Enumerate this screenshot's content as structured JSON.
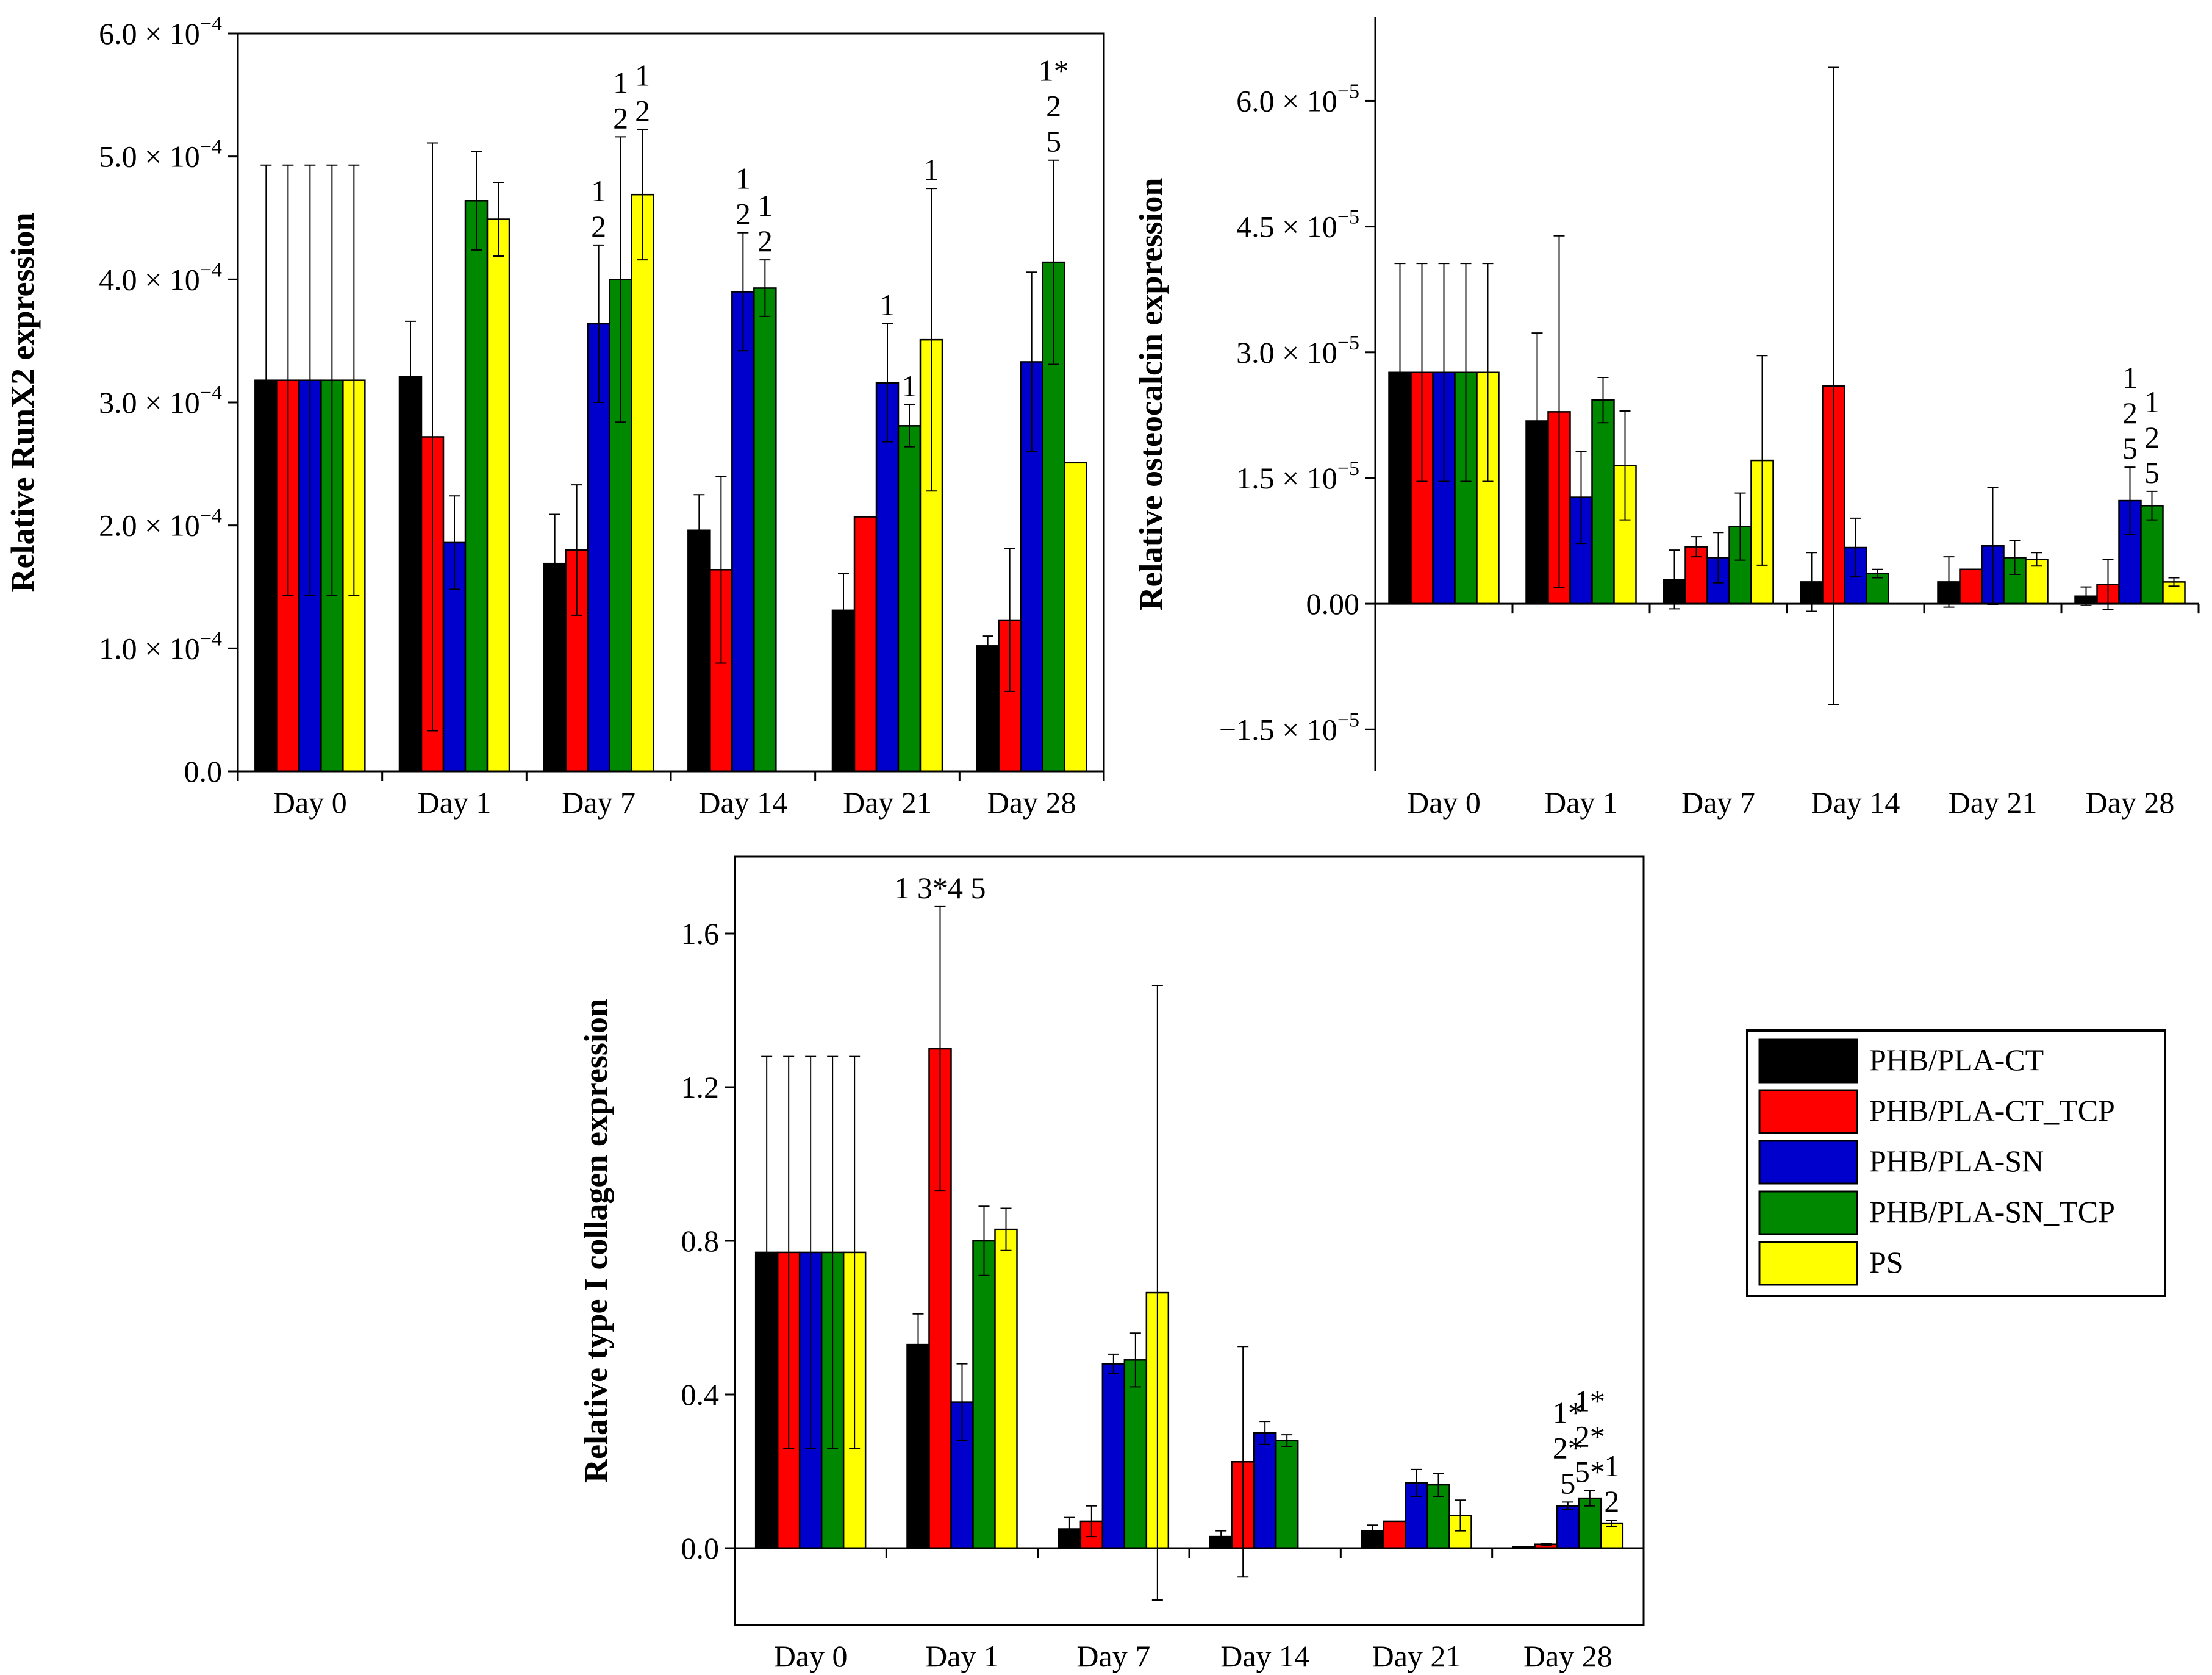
{
  "legend": [
    {
      "name": "PHB/PLA-CT",
      "color": "#000000"
    },
    {
      "name": "PHB/PLA-CT_TCP",
      "color": "#ff0000"
    },
    {
      "name": "PHB/PLA-SN",
      "color": "#0000cc"
    },
    {
      "name": "PHB/PLA-SN_TCP",
      "color": "#008800"
    },
    {
      "name": "PS",
      "color": "#ffff00"
    }
  ],
  "chart_data": [
    {
      "id": "runx2",
      "type": "bar",
      "title": "",
      "ylabel": "Relative RunX2 expression",
      "xlabel": "",
      "categories": [
        "Day 0",
        "Day 1",
        "Day 7",
        "Day 14",
        "Day 21",
        "Day 28"
      ],
      "ylim": [
        0,
        0.0006
      ],
      "yticks": [
        0,
        0.0001,
        0.0002,
        0.0003,
        0.0004,
        0.0005,
        0.0006
      ],
      "ytick_labels": [
        {
          "mantissa": "0.0",
          "exp": ""
        },
        {
          "mantissa": "1.0 × 10",
          "exp": "−4"
        },
        {
          "mantissa": "2.0 × 10",
          "exp": "−4"
        },
        {
          "mantissa": "3.0 × 10",
          "exp": "−4"
        },
        {
          "mantissa": "4.0 × 10",
          "exp": "−4"
        },
        {
          "mantissa": "5.0 × 10",
          "exp": "−4"
        },
        {
          "mantissa": "6.0 × 10",
          "exp": "−4"
        }
      ],
      "series": [
        {
          "name": "PHB/PLA-CT",
          "values": [
            0.000318,
            0.000321,
            0.000169,
            0.000196,
            0.000131,
            0.000102
          ],
          "errors": [
            0.000175,
            4.5e-05,
            4e-05,
            2.9e-05,
            3e-05,
            8e-06
          ]
        },
        {
          "name": "PHB/PLA-CT_TCP",
          "values": [
            0.000318,
            0.000272,
            0.00018,
            0.000164,
            0.000207,
            0.000123
          ],
          "errors": [
            0.000175,
            0.000239,
            5.3e-05,
            7.6e-05,
            0,
            5.8e-05
          ]
        },
        {
          "name": "PHB/PLA-SN",
          "values": [
            0.000318,
            0.000186,
            0.000364,
            0.00039,
            0.000316,
            0.000333
          ],
          "errors": [
            0.000175,
            3.8e-05,
            6.4e-05,
            4.8e-05,
            4.8e-05,
            7.3e-05
          ]
        },
        {
          "name": "PHB/PLA-SN_TCP",
          "values": [
            0.000318,
            0.000464,
            0.0004,
            0.000393,
            0.000281,
            0.000414
          ],
          "errors": [
            0.000175,
            4e-05,
            0.000116,
            2.3e-05,
            1.7e-05,
            8.3e-05
          ]
        },
        {
          "name": "PS",
          "values": [
            0.000318,
            0.000449,
            0.000469,
            null,
            0.000351,
            0.000251
          ],
          "errors": [
            0.000175,
            3e-05,
            5.3e-05,
            0,
            0.000123,
            0
          ]
        }
      ],
      "annotations": [
        {
          "cat": 2,
          "series": 2,
          "lines": [
            "1",
            "2"
          ]
        },
        {
          "cat": 2,
          "series": 3,
          "lines": [
            "1",
            "2"
          ]
        },
        {
          "cat": 2,
          "series": 4,
          "lines": [
            "1",
            "2"
          ]
        },
        {
          "cat": 3,
          "series": 2,
          "lines": [
            "1",
            "2"
          ]
        },
        {
          "cat": 3,
          "series": 3,
          "lines": [
            "1",
            "2"
          ]
        },
        {
          "cat": 4,
          "series": 2,
          "lines": [
            "1"
          ]
        },
        {
          "cat": 4,
          "series": 3,
          "lines": [
            "1"
          ]
        },
        {
          "cat": 4,
          "series": 4,
          "lines": [
            "1"
          ]
        },
        {
          "cat": 5,
          "series": 3,
          "lines": [
            "1*",
            "2",
            "5"
          ]
        }
      ]
    },
    {
      "id": "osteocalcin",
      "type": "bar",
      "title": "",
      "ylabel": "Relative osteocalcin expression",
      "xlabel": "",
      "categories": [
        "Day 0",
        "Day 1",
        "Day 7",
        "Day 14",
        "Day 21",
        "Day 28"
      ],
      "ylim": [
        -2e-05,
        7e-05
      ],
      "yticks": [
        -1.5e-05,
        0,
        1.5e-05,
        3e-05,
        4.5e-05,
        6e-05
      ],
      "ytick_labels": [
        {
          "mantissa": "−1.5 × 10",
          "exp": "−5"
        },
        {
          "mantissa": "0.00",
          "exp": ""
        },
        {
          "mantissa": "1.5 × 10",
          "exp": "−5"
        },
        {
          "mantissa": "3.0 × 10",
          "exp": "−5"
        },
        {
          "mantissa": "4.5 × 10",
          "exp": "−5"
        },
        {
          "mantissa": "6.0 × 10",
          "exp": "−5"
        }
      ],
      "series": [
        {
          "name": "PHB/PLA-CT",
          "values": [
            2.76e-05,
            2.18e-05,
            2.9e-06,
            2.6e-06,
            2.6e-06,
            9e-07
          ],
          "errors": [
            1.3e-05,
            1.05e-05,
            3.5e-06,
            3.5e-06,
            3e-06,
            1.1e-06
          ]
        },
        {
          "name": "PHB/PLA-CT_TCP",
          "values": [
            2.76e-05,
            2.29e-05,
            6.8e-06,
            2.6e-05,
            4.1e-06,
            2.3e-06
          ],
          "errors": [
            1.3e-05,
            2.1e-05,
            1.2e-06,
            3.8e-05,
            0,
            3e-06
          ]
        },
        {
          "name": "PHB/PLA-SN",
          "values": [
            2.76e-05,
            1.27e-05,
            5.5e-06,
            6.7e-06,
            6.9e-06,
            1.23e-05
          ],
          "errors": [
            1.3e-05,
            5.5e-06,
            3e-06,
            3.5e-06,
            7e-06,
            4e-06
          ]
        },
        {
          "name": "PHB/PLA-SN_TCP",
          "values": [
            2.76e-05,
            2.43e-05,
            9.2e-06,
            3.6e-06,
            5.5e-06,
            1.17e-05
          ],
          "errors": [
            1.3e-05,
            2.7e-06,
            4e-06,
            5e-07,
            2e-06,
            1.7e-06
          ]
        },
        {
          "name": "PS",
          "values": [
            2.76e-05,
            1.65e-05,
            1.71e-05,
            null,
            5.3e-06,
            2.6e-06
          ],
          "errors": [
            1.3e-05,
            6.5e-06,
            1.25e-05,
            0,
            8e-07,
            5e-07
          ]
        }
      ],
      "annotations": [
        {
          "cat": 5,
          "series": 2,
          "lines": [
            "1",
            "2",
            "5"
          ]
        },
        {
          "cat": 5,
          "series": 3,
          "lines": [
            "1",
            "2",
            "5"
          ]
        }
      ]
    },
    {
      "id": "collagen",
      "type": "bar",
      "title": "",
      "ylabel": "Relative type I collagen expression",
      "xlabel": "",
      "categories": [
        "Day 0",
        "Day 1",
        "Day 7",
        "Day 14",
        "Day 21",
        "Day 28"
      ],
      "ylim": [
        -0.2,
        1.8
      ],
      "yticks": [
        0,
        0.4,
        0.8,
        1.2,
        1.6
      ],
      "ytick_labels": [
        {
          "mantissa": "0.0",
          "exp": ""
        },
        {
          "mantissa": "0.4",
          "exp": ""
        },
        {
          "mantissa": "0.8",
          "exp": ""
        },
        {
          "mantissa": "1.2",
          "exp": ""
        },
        {
          "mantissa": "1.6",
          "exp": ""
        }
      ],
      "series": [
        {
          "name": "PHB/PLA-CT",
          "values": [
            0.77,
            0.53,
            0.05,
            0.03,
            0.045,
            0.003
          ],
          "errors": [
            0.51,
            0.08,
            0.03,
            0.015,
            0.015,
            0.001
          ]
        },
        {
          "name": "PHB/PLA-CT_TCP",
          "values": [
            0.77,
            1.3,
            0.07,
            0.225,
            0.07,
            0.01
          ],
          "errors": [
            0.51,
            0.37,
            0.04,
            0.3,
            0,
            0.002
          ]
        },
        {
          "name": "PHB/PLA-SN",
          "values": [
            0.77,
            0.38,
            0.48,
            0.3,
            0.17,
            0.11
          ],
          "errors": [
            0.51,
            0.1,
            0.025,
            0.03,
            0.035,
            0.01
          ]
        },
        {
          "name": "PHB/PLA-SN_TCP",
          "values": [
            0.77,
            0.8,
            0.49,
            0.28,
            0.165,
            0.13
          ],
          "errors": [
            0.51,
            0.09,
            0.07,
            0.015,
            0.03,
            0.02
          ]
        },
        {
          "name": "PS",
          "values": [
            0.77,
            0.83,
            0.665,
            null,
            0.085,
            0.065
          ],
          "errors": [
            0.51,
            0.055,
            0.8,
            0,
            0.04,
            0.008
          ]
        }
      ],
      "annotations": [
        {
          "cat": 1,
          "series": 1,
          "lines": [
            "1 3*4 5"
          ]
        },
        {
          "cat": 5,
          "series": 2,
          "lines": [
            "1*",
            "2*",
            "5"
          ]
        },
        {
          "cat": 5,
          "series": 3,
          "lines": [
            "1*",
            "2*",
            "5*"
          ]
        },
        {
          "cat": 5,
          "series": 4,
          "lines": [
            "1",
            "2"
          ]
        }
      ]
    }
  ]
}
